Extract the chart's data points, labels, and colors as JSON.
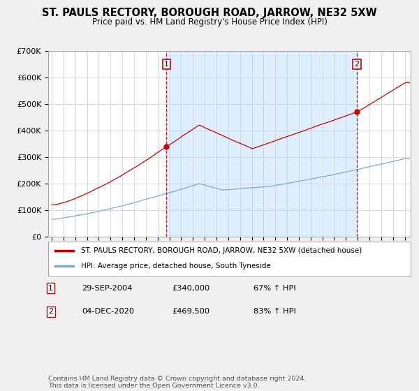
{
  "title": "ST. PAULS RECTORY, BOROUGH ROAD, JARROW, NE32 5XW",
  "subtitle": "Price paid vs. HM Land Registry's House Price Index (HPI)",
  "ylim": [
    0,
    700000
  ],
  "xlim_start": 1994.7,
  "xlim_end": 2025.5,
  "sale1_date": 2004.75,
  "sale1_price": 340000,
  "sale2_date": 2020.92,
  "sale2_price": 469500,
  "line_color_property": "#cc0000",
  "line_color_hpi": "#7faacc",
  "annotation_line_color": "#cc0000",
  "shade_color": "#ddeeff",
  "legend_label_property": "ST. PAULS RECTORY, BOROUGH ROAD, JARROW, NE32 5XW (detached house)",
  "legend_label_hpi": "HPI: Average price, detached house, South Tyneside",
  "note1_date": "29-SEP-2004",
  "note1_price": "£340,000",
  "note1_hpi": "67% ↑ HPI",
  "note2_date": "04-DEC-2020",
  "note2_price": "£469,500",
  "note2_hpi": "83% ↑ HPI",
  "footer": "Contains HM Land Registry data © Crown copyright and database right 2024.\nThis data is licensed under the Open Government Licence v3.0.",
  "background_color": "#f0f0f0",
  "plot_background": "#ffffff"
}
